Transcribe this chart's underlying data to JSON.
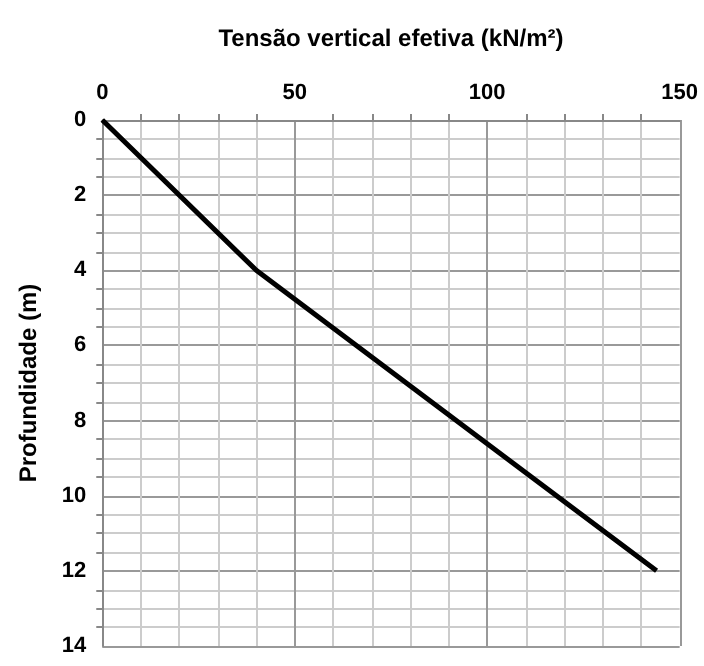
{
  "chart_data": {
    "type": "line",
    "xlabel": "Tensão vertical efetiva (kN/m²)",
    "ylabel": "Profundidade (m)",
    "x": [
      0,
      40,
      144
    ],
    "series": [
      {
        "color": "#000000",
        "values": [
          0,
          4,
          12
        ]
      }
    ],
    "xlim": [
      0,
      150
    ],
    "xticks": [
      0,
      50,
      100,
      150
    ],
    "ylim": [
      14,
      0
    ],
    "yticks": [
      0,
      2,
      4,
      6,
      8,
      10,
      12,
      14
    ],
    "grid": true,
    "marker": "none",
    "line_style": "solid"
  }
}
